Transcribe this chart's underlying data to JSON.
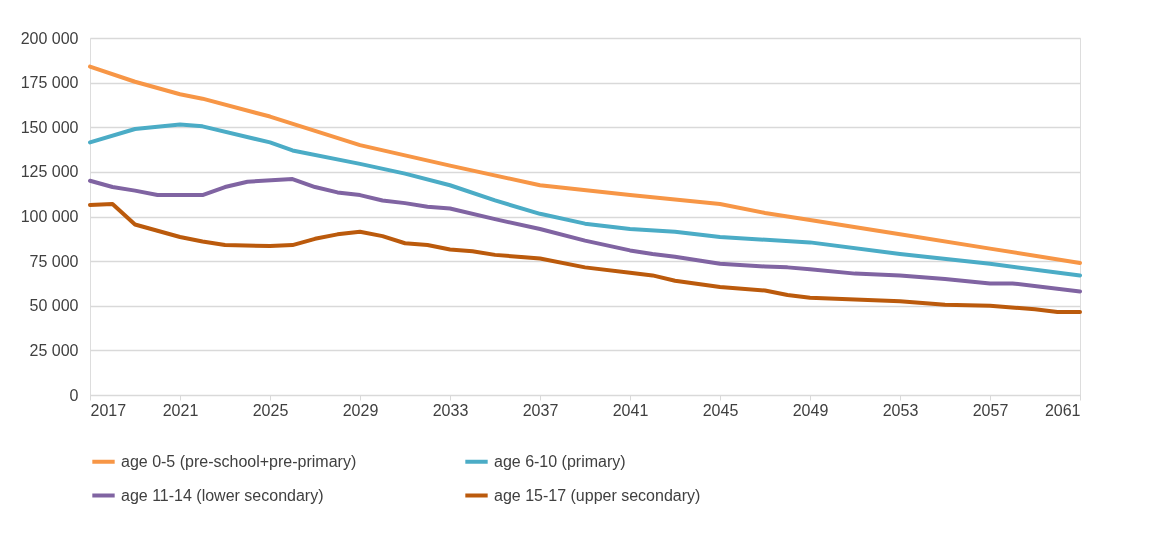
{
  "chart_data": {
    "type": "line",
    "xlim": [
      2017,
      2061
    ],
    "xticks": [
      2017,
      2021,
      2025,
      2029,
      2033,
      2037,
      2041,
      2045,
      2049,
      2053,
      2057,
      2061
    ],
    "ylim": [
      0,
      200000
    ],
    "yticks": [
      {
        "value": 0,
        "label": "0"
      },
      {
        "value": 25000,
        "label": "25 000"
      },
      {
        "value": 50000,
        "label": "50 000"
      },
      {
        "value": 75000,
        "label": "75 000"
      },
      {
        "value": 100000,
        "label": "100 000"
      },
      {
        "value": 125000,
        "label": "125 000"
      },
      {
        "value": 150000,
        "label": "150 000"
      },
      {
        "value": 175000,
        "label": "175 000"
      },
      {
        "value": 200000,
        "label": "200 000"
      }
    ],
    "grid": "y",
    "legend": "bottom",
    "line_style": "solid",
    "series": [
      {
        "name": "age 0-5 (pre-school+pre-primary)",
        "color": "#f79646",
        "x": [
          2017,
          2019,
          2021,
          2022,
          2025,
          2029,
          2033,
          2037,
          2041,
          2045,
          2047,
          2049,
          2053,
          2057,
          2061
        ],
        "values": [
          184000,
          175500,
          168500,
          166000,
          156000,
          140000,
          128500,
          117500,
          112000,
          107000,
          102000,
          98000,
          90000,
          82000,
          74000
        ]
      },
      {
        "name": "age 6-10 (primary)",
        "color": "#4bacc6",
        "x": [
          2017,
          2019,
          2021,
          2022,
          2025,
          2026,
          2029,
          2031,
          2033,
          2035,
          2037,
          2039,
          2041,
          2043,
          2045,
          2049,
          2053,
          2057,
          2061
        ],
        "values": [
          141500,
          149000,
          151500,
          150500,
          141500,
          137000,
          129500,
          124000,
          117500,
          109000,
          101500,
          96000,
          93000,
          91500,
          88500,
          85500,
          79000,
          73500,
          67000
        ]
      },
      {
        "name": "age 11-14 (lower secondary)",
        "color": "#8064a2",
        "x": [
          2017,
          2018,
          2019,
          2020,
          2022,
          2023,
          2024,
          2026,
          2027,
          2028,
          2029,
          2030,
          2031,
          2032,
          2033,
          2035,
          2037,
          2039,
          2041,
          2042,
          2043,
          2045,
          2047,
          2048,
          2049,
          2051,
          2053,
          2055,
          2057,
          2058,
          2061
        ],
        "values": [
          120000,
          116500,
          114500,
          112000,
          112000,
          116500,
          119500,
          121000,
          116500,
          113500,
          112000,
          109000,
          107500,
          105500,
          104500,
          98500,
          93000,
          86500,
          81000,
          79000,
          77500,
          73500,
          72000,
          71500,
          70500,
          68000,
          67000,
          65000,
          62500,
          62500,
          58000
        ]
      },
      {
        "name": "age 15-17 (upper secondary)",
        "color": "#bb5a0c",
        "x": [
          2017,
          2018,
          2019,
          2020,
          2021,
          2022,
          2023,
          2025,
          2026,
          2027,
          2028,
          2029,
          2030,
          2031,
          2032,
          2033,
          2034,
          2035,
          2037,
          2039,
          2041,
          2042,
          2043,
          2045,
          2047,
          2048,
          2049,
          2051,
          2053,
          2055,
          2057,
          2059,
          2060,
          2061
        ],
        "values": [
          106500,
          107000,
          95500,
          92000,
          88500,
          86000,
          84000,
          83500,
          84000,
          87500,
          90000,
          91500,
          89000,
          85000,
          84000,
          81500,
          80500,
          78500,
          76500,
          71500,
          68500,
          67000,
          64000,
          60500,
          58500,
          56000,
          54500,
          53500,
          52500,
          50500,
          50000,
          48000,
          46500,
          46500
        ]
      }
    ]
  }
}
